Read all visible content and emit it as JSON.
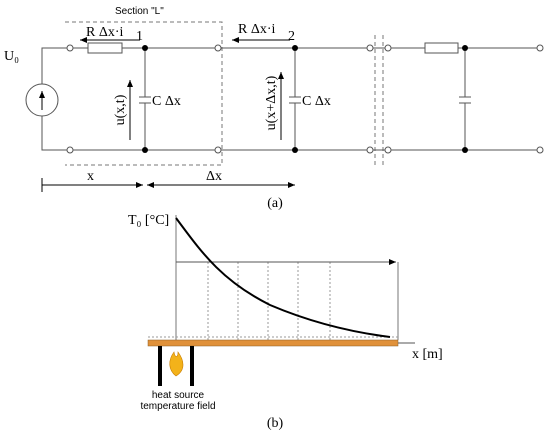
{
  "circuit": {
    "section_label": "Section \"L\"",
    "current_label_1": "R  Δx·i",
    "node_1": "1",
    "node_2": "2",
    "current_label_2": "R  Δx·i",
    "source_label": "U₀",
    "voltage_1": "u(x,t)",
    "capacitor_1": "C  Δx",
    "voltage_2": "u(x+Δx,t)",
    "capacitor_2": "C  Δx",
    "x_label": "x",
    "dx_label": "Δx",
    "caption": "(a)"
  },
  "heat_plot": {
    "y_axis_label": "T₀ [°C]",
    "x_axis_label": "x [m]",
    "source_label": [
      "heat source",
      "temperature field"
    ],
    "caption": "(b)"
  }
}
